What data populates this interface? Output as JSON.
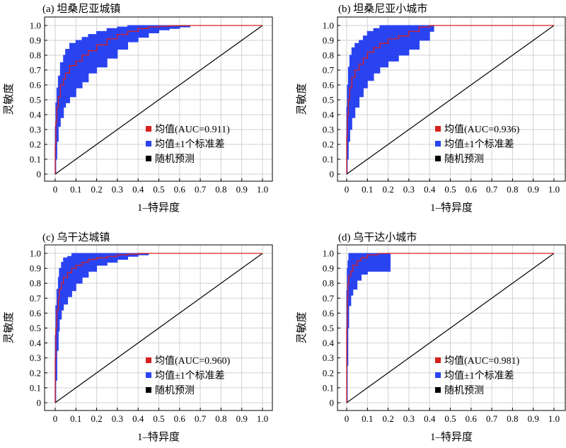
{
  "figure": {
    "background": "#ffffff"
  },
  "colors": {
    "mean": "#d62020",
    "band": "#2a43f0",
    "random": "#000000",
    "grid": "#d2d2d2"
  },
  "chart_data": [
    {
      "type": "line",
      "title": "(a) 坦桑尼亚城镇",
      "xlabel": "1–特异度",
      "ylabel": "灵敏度",
      "xlim": [
        0,
        1
      ],
      "ylim": [
        0,
        1
      ],
      "xticks": [
        "0",
        "0.1",
        "0.2",
        "0.3",
        "0.4",
        "0.5",
        "0.6",
        "0.7",
        "0.8",
        "0.9",
        "1.0"
      ],
      "yticks": [
        "0",
        "0.1",
        "0.2",
        "0.3",
        "0.4",
        "0.5",
        "0.6",
        "0.7",
        "0.8",
        "0.9",
        "1.0"
      ],
      "grid": true,
      "legend_position": "bottom-right",
      "legend": [
        "均值(AUC=0.911)",
        "均值±1个标准差",
        "随机预测"
      ],
      "series": [
        {
          "name": "均值(AUC=0.911)",
          "kind": "mean",
          "x": [
            0,
            0.003,
            0.008,
            0.015,
            0.025,
            0.04,
            0.05,
            0.07,
            0.1,
            0.13,
            0.16,
            0.2,
            0.25,
            0.3,
            0.35,
            0.4,
            0.45,
            0.5,
            0.55,
            0.6,
            0.65,
            1.0
          ],
          "y": [
            0,
            0.2,
            0.35,
            0.45,
            0.52,
            0.6,
            0.64,
            0.68,
            0.73,
            0.76,
            0.8,
            0.83,
            0.87,
            0.91,
            0.94,
            0.96,
            0.98,
            0.99,
            0.995,
            0.998,
            1.0,
            1.0
          ]
        },
        {
          "name": "均值±1个标准差",
          "kind": "band",
          "x": [
            0,
            0.003,
            0.008,
            0.015,
            0.025,
            0.04,
            0.05,
            0.07,
            0.1,
            0.13,
            0.16,
            0.2,
            0.25,
            0.3,
            0.35,
            0.4,
            0.45,
            0.5,
            0.55,
            0.6,
            0.65
          ],
          "upper": [
            0,
            0.32,
            0.48,
            0.58,
            0.66,
            0.75,
            0.8,
            0.84,
            0.88,
            0.9,
            0.92,
            0.94,
            0.96,
            0.98,
            0.99,
            1.0,
            1.0,
            1.0,
            1.0,
            1.0,
            1.0
          ],
          "lower": [
            0,
            0.1,
            0.22,
            0.32,
            0.38,
            0.45,
            0.48,
            0.52,
            0.58,
            0.62,
            0.68,
            0.72,
            0.78,
            0.84,
            0.89,
            0.92,
            0.95,
            0.97,
            0.98,
            0.99,
            1.0
          ]
        },
        {
          "name": "随机预测",
          "kind": "random",
          "x": [
            0,
            1
          ],
          "y": [
            0,
            1
          ]
        }
      ]
    },
    {
      "type": "line",
      "title": "(b) 坦桑尼亚小城市",
      "xlabel": "1–特异度",
      "ylabel": "灵敏度",
      "xlim": [
        0,
        1
      ],
      "ylim": [
        0,
        1
      ],
      "xticks": [
        "0",
        "0.1",
        "0.2",
        "0.3",
        "0.4",
        "0.5",
        "0.6",
        "0.7",
        "0.8",
        "0.9",
        "1.0"
      ],
      "yticks": [
        "0",
        "0.1",
        "0.2",
        "0.3",
        "0.4",
        "0.5",
        "0.6",
        "0.7",
        "0.8",
        "0.9",
        "1.0"
      ],
      "grid": true,
      "legend_position": "bottom-right",
      "legend": [
        "均值(AUC=0.936)",
        "均值±1个标准差",
        "随机预测"
      ],
      "series": [
        {
          "name": "均值(AUC=0.936)",
          "kind": "mean",
          "x": [
            0,
            0.003,
            0.008,
            0.015,
            0.025,
            0.04,
            0.06,
            0.08,
            0.1,
            0.13,
            0.16,
            0.2,
            0.25,
            0.3,
            0.35,
            0.4,
            0.42,
            1.0
          ],
          "y": [
            0,
            0.25,
            0.4,
            0.5,
            0.58,
            0.65,
            0.7,
            0.74,
            0.78,
            0.82,
            0.85,
            0.88,
            0.91,
            0.93,
            0.96,
            0.99,
            1.0,
            1.0
          ]
        },
        {
          "name": "均值±1个标准差",
          "kind": "band",
          "x": [
            0,
            0.003,
            0.008,
            0.015,
            0.025,
            0.04,
            0.06,
            0.08,
            0.1,
            0.13,
            0.16,
            0.2,
            0.25,
            0.3,
            0.35,
            0.4,
            0.42
          ],
          "upper": [
            0,
            0.45,
            0.6,
            0.72,
            0.8,
            0.85,
            0.88,
            0.9,
            0.93,
            0.96,
            0.98,
            1.0,
            1.0,
            1.0,
            1.0,
            1.0,
            1.0
          ],
          "lower": [
            0,
            0.1,
            0.22,
            0.3,
            0.38,
            0.45,
            0.52,
            0.58,
            0.63,
            0.68,
            0.72,
            0.76,
            0.8,
            0.84,
            0.9,
            0.96,
            1.0
          ]
        },
        {
          "name": "随机预测",
          "kind": "random",
          "x": [
            0,
            1
          ],
          "y": [
            0,
            1
          ]
        }
      ]
    },
    {
      "type": "line",
      "title": "(c) 乌干达城镇",
      "xlabel": "1–特异度",
      "ylabel": "灵敏度",
      "xlim": [
        0,
        1
      ],
      "ylim": [
        0,
        1
      ],
      "xticks": [
        "0",
        "0.1",
        "0.2",
        "0.3",
        "0.4",
        "0.5",
        "0.6",
        "0.7",
        "0.8",
        "0.9",
        "1.0"
      ],
      "yticks": [
        "0",
        "0.1",
        "0.2",
        "0.3",
        "0.4",
        "0.5",
        "0.6",
        "0.7",
        "0.8",
        "0.9",
        "1.0"
      ],
      "grid": true,
      "legend_position": "bottom-right",
      "legend": [
        "均值(AUC=0.960)",
        "均值±1个标准差",
        "随机预测"
      ],
      "series": [
        {
          "name": "均值(AUC=0.960)",
          "kind": "mean",
          "x": [
            0,
            0.003,
            0.008,
            0.015,
            0.02,
            0.03,
            0.04,
            0.06,
            0.08,
            0.1,
            0.13,
            0.16,
            0.2,
            0.25,
            0.3,
            0.35,
            0.4,
            0.45,
            1.0
          ],
          "y": [
            0,
            0.3,
            0.5,
            0.62,
            0.7,
            0.76,
            0.8,
            0.84,
            0.87,
            0.9,
            0.92,
            0.94,
            0.96,
            0.97,
            0.98,
            0.99,
            0.995,
            1.0,
            1.0
          ]
        },
        {
          "name": "均值±1个标准差",
          "kind": "band",
          "x": [
            0,
            0.003,
            0.008,
            0.015,
            0.02,
            0.03,
            0.04,
            0.06,
            0.08,
            0.1,
            0.13,
            0.16,
            0.2,
            0.25,
            0.3,
            0.35,
            0.4,
            0.45
          ],
          "upper": [
            0,
            0.45,
            0.65,
            0.76,
            0.84,
            0.9,
            0.94,
            0.97,
            0.98,
            1.0,
            1.0,
            1.0,
            1.0,
            1.0,
            1.0,
            1.0,
            1.0,
            1.0
          ],
          "lower": [
            0,
            0.15,
            0.35,
            0.48,
            0.56,
            0.62,
            0.66,
            0.71,
            0.75,
            0.8,
            0.84,
            0.88,
            0.92,
            0.94,
            0.96,
            0.98,
            0.99,
            1.0
          ]
        },
        {
          "name": "随机预测",
          "kind": "random",
          "x": [
            0,
            1
          ],
          "y": [
            0,
            1
          ]
        }
      ]
    },
    {
      "type": "line",
      "title": "(d) 乌干达小城市",
      "xlabel": "1–特异度",
      "ylabel": "灵敏度",
      "xlim": [
        0,
        1
      ],
      "ylim": [
        0,
        1
      ],
      "xticks": [
        "0",
        "0.1",
        "0.2",
        "0.3",
        "0.4",
        "0.5",
        "0.6",
        "0.7",
        "0.8",
        "0.9",
        "1.0"
      ],
      "yticks": [
        "0",
        "0.1",
        "0.2",
        "0.3",
        "0.4",
        "0.5",
        "0.6",
        "0.7",
        "0.8",
        "0.9",
        "1.0"
      ],
      "grid": true,
      "legend_position": "bottom-right",
      "legend": [
        "均值(AUC=0.981)",
        "均值±1个标准差",
        "随机预测"
      ],
      "series": [
        {
          "name": "均值(AUC=0.981)",
          "kind": "mean",
          "x": [
            0,
            0.003,
            0.006,
            0.01,
            0.02,
            0.03,
            0.05,
            0.07,
            0.1,
            0.15,
            0.2,
            0.21,
            1.0
          ],
          "y": [
            0,
            0.5,
            0.7,
            0.8,
            0.85,
            0.88,
            0.92,
            0.95,
            0.97,
            0.99,
            1.0,
            1.0,
            1.0
          ]
        },
        {
          "name": "均值±1个标准差",
          "kind": "band",
          "x": [
            0,
            0.003,
            0.006,
            0.01,
            0.02,
            0.03,
            0.05,
            0.07,
            0.1,
            0.15,
            0.2,
            0.21
          ],
          "upper": [
            0,
            0.75,
            0.9,
            0.95,
            1.0,
            1.0,
            1.0,
            1.0,
            1.0,
            1.0,
            1.0,
            1.0
          ],
          "lower": [
            0,
            0.25,
            0.5,
            0.65,
            0.72,
            0.76,
            0.82,
            0.86,
            0.88,
            0.88,
            0.88,
            1.0
          ]
        },
        {
          "name": "随机预测",
          "kind": "random",
          "x": [
            0,
            1
          ],
          "y": [
            0,
            1
          ]
        }
      ]
    }
  ]
}
